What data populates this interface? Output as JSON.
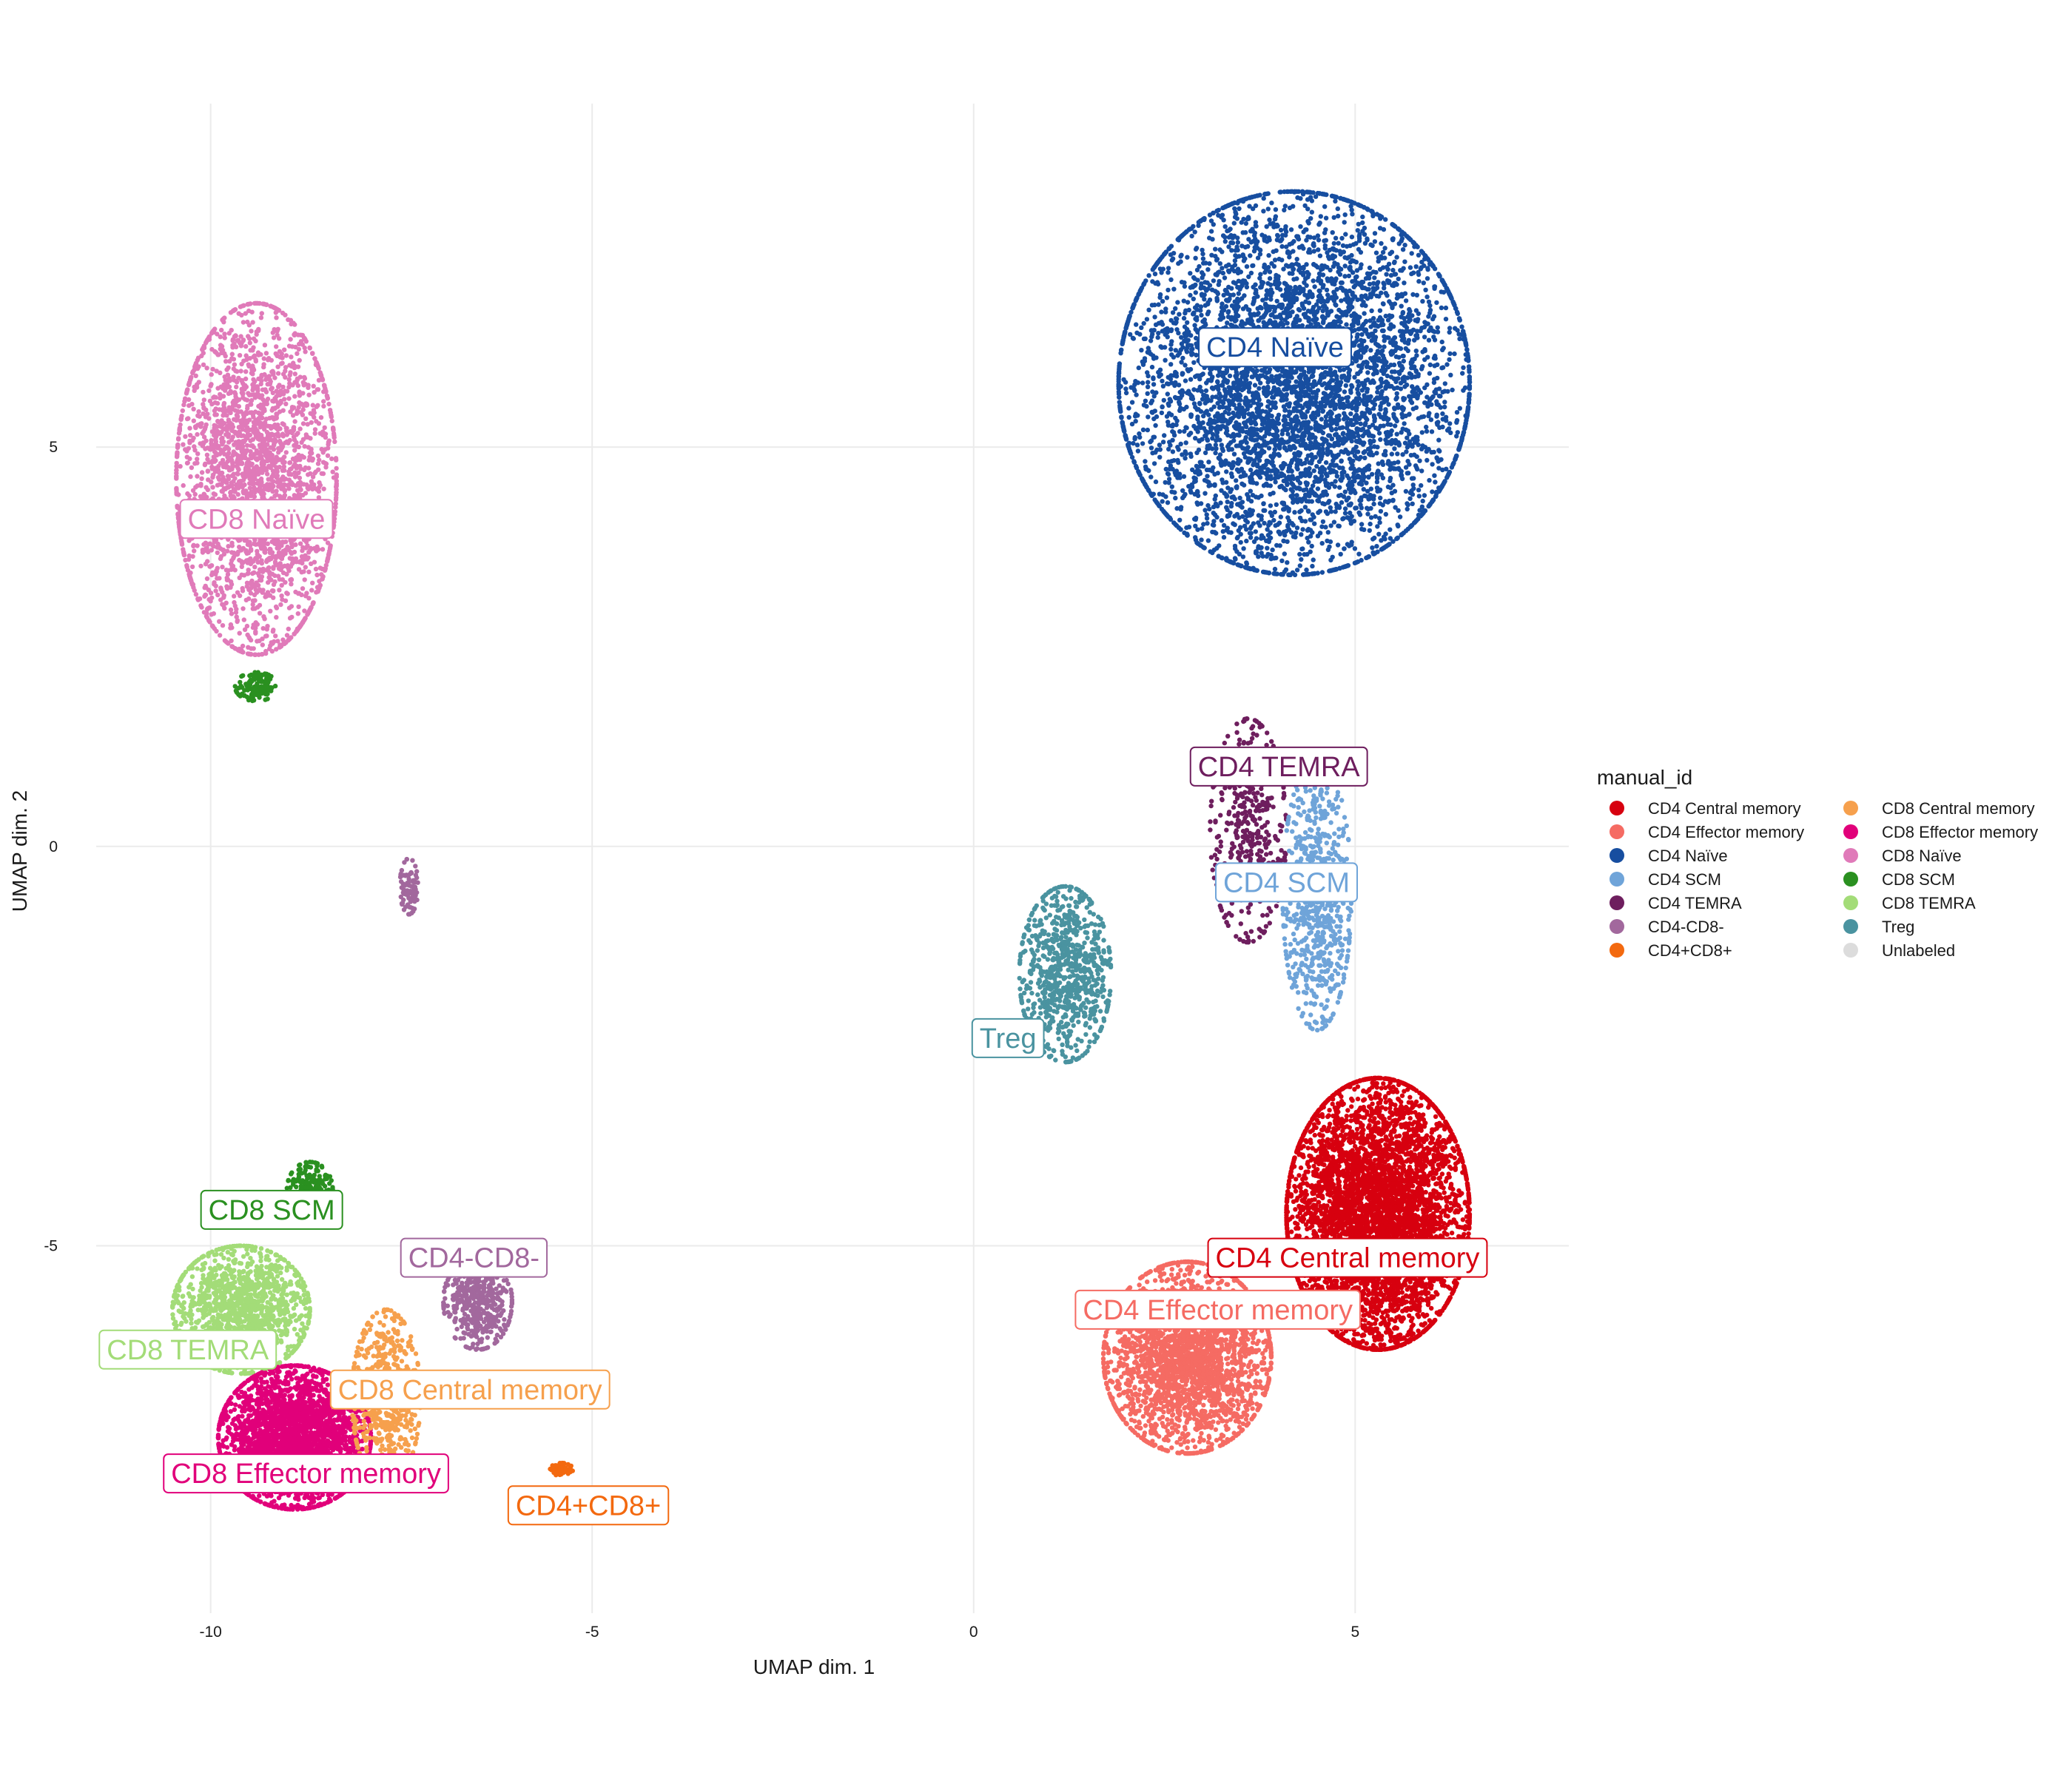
{
  "chart_data": {
    "type": "scatter",
    "title": "",
    "xlabel": "UMAP dim. 1",
    "ylabel": "UMAP dim. 2",
    "xlim": [
      -11.5,
      7.8
    ],
    "ylim": [
      -9.6,
      9.3
    ],
    "x_ticks": [
      -10,
      -5,
      0,
      5
    ],
    "y_ticks": [
      -5,
      0,
      5
    ],
    "x_tick_labels": [
      "-10",
      "-5",
      "0",
      "5"
    ],
    "y_tick_labels": [
      "-5",
      "0",
      "5"
    ],
    "grid": true,
    "legend": {
      "title": "manual_id",
      "position": "right",
      "columns": 2,
      "entries": [
        {
          "label": "CD4 Central memory",
          "color": "#d7000f"
        },
        {
          "label": "CD4 Effector memory",
          "color": "#f56b63"
        },
        {
          "label": "CD4 Naïve",
          "color": "#174ea0"
        },
        {
          "label": "CD4 SCM",
          "color": "#6fa4d9"
        },
        {
          "label": "CD4 TEMRA",
          "color": "#6e1e5e"
        },
        {
          "label": "CD4-CD8-",
          "color": "#a2689d"
        },
        {
          "label": "CD4+CD8+",
          "color": "#f3690f"
        },
        {
          "label": "CD8 Central memory",
          "color": "#f6a04d"
        },
        {
          "label": "CD8 Effector memory",
          "color": "#e1007a"
        },
        {
          "label": "CD8 Naïve",
          "color": "#e07ab9"
        },
        {
          "label": "CD8 SCM",
          "color": "#2a9020"
        },
        {
          "label": "CD8 TEMRA",
          "color": "#a3dc78"
        },
        {
          "label": "Treg",
          "color": "#4a93a0"
        },
        {
          "label": "Unlabeled",
          "color": "#dcdcdc"
        }
      ]
    },
    "clusters": [
      {
        "name": "CD8 Naïve",
        "color": "#e07ab9",
        "center": [
          -9.4,
          4.6
        ],
        "spread": [
          1.05,
          2.2
        ],
        "count": 2600,
        "label": "CD8 Naïve",
        "label_pos": [
          -9.4,
          4.1
        ]
      },
      {
        "name": "CD8 SCM",
        "color": "#2a9020",
        "center": [
          -9.4,
          2.0
        ],
        "spread": [
          0.28,
          0.18
        ],
        "count": 120,
        "label": "",
        "label_pos": null
      },
      {
        "name": "CD4-CD8-",
        "color": "#a2689d",
        "center": [
          -7.4,
          -0.5
        ],
        "spread": [
          0.12,
          0.35
        ],
        "count": 90,
        "label": "",
        "label_pos": null
      },
      {
        "name": "CD4 Naïve",
        "color": "#174ea0",
        "center": [
          4.2,
          5.8
        ],
        "spread": [
          2.3,
          2.4
        ],
        "count": 5200,
        "label": "CD4 Naïve",
        "label_pos": [
          3.95,
          6.25
        ]
      },
      {
        "name": "CD4 TEMRA",
        "color": "#6e1e5e",
        "center": [
          3.6,
          0.2
        ],
        "spread": [
          0.5,
          1.4
        ],
        "count": 420,
        "label": "CD4 TEMRA",
        "label_pos": [
          4.0,
          1.0
        ]
      },
      {
        "name": "CD4 SCM",
        "color": "#6fa4d9",
        "center": [
          4.5,
          -0.6
        ],
        "spread": [
          0.45,
          1.7
        ],
        "count": 700,
        "label": "CD4 SCM",
        "label_pos": [
          4.1,
          -0.45
        ]
      },
      {
        "name": "Treg",
        "color": "#4a93a0",
        "center": [
          1.2,
          -1.6
        ],
        "spread": [
          0.6,
          1.1
        ],
        "count": 800,
        "label": "Treg",
        "label_pos": [
          0.45,
          -2.4
        ]
      },
      {
        "name": "CD4 Central memory",
        "color": "#d7000f",
        "center": [
          5.3,
          -4.6
        ],
        "spread": [
          1.2,
          1.7
        ],
        "count": 4800,
        "label": "CD4 Central memory",
        "label_pos": [
          4.9,
          -5.15
        ]
      },
      {
        "name": "CD4 Effector memory",
        "color": "#f56b63",
        "center": [
          2.8,
          -6.4
        ],
        "spread": [
          1.1,
          1.2
        ],
        "count": 2400,
        "label": "CD4 Effector memory",
        "label_pos": [
          3.2,
          -5.8
        ]
      },
      {
        "name": "CD8 TEMRA",
        "color": "#a3dc78",
        "center": [
          -9.6,
          -5.8
        ],
        "spread": [
          0.9,
          0.8
        ],
        "count": 1300,
        "label": "CD8 TEMRA",
        "label_pos": [
          -10.3,
          -6.3
        ]
      },
      {
        "name": "CD8 Effector memory",
        "color": "#e1007a",
        "center": [
          -8.9,
          -7.4
        ],
        "spread": [
          1.0,
          0.9
        ],
        "count": 2600,
        "label": "CD8 Effector memory",
        "label_pos": [
          -8.75,
          -7.85
        ]
      },
      {
        "name": "CD8 Central memory",
        "color": "#f6a04d",
        "center": [
          -7.7,
          -6.9
        ],
        "spread": [
          0.45,
          1.1
        ],
        "count": 650,
        "label": "CD8 Central memory",
        "label_pos": [
          -6.6,
          -6.8
        ]
      },
      {
        "name": "CD4-CD8-",
        "color": "#a2689d",
        "center": [
          -6.5,
          -5.7
        ],
        "spread": [
          0.45,
          0.6
        ],
        "count": 450,
        "label": "CD4-CD8-",
        "label_pos": [
          -6.55,
          -5.15
        ]
      },
      {
        "name": "CD4+CD8+",
        "color": "#f3690f",
        "center": [
          -5.4,
          -7.8
        ],
        "spread": [
          0.15,
          0.08
        ],
        "count": 60,
        "label": "CD4+CD8+",
        "label_pos": [
          -5.05,
          -8.25
        ]
      },
      {
        "name": "CD8 SCM",
        "color": "#2a9020",
        "center": [
          -8.7,
          -4.3
        ],
        "spread": [
          0.3,
          0.35
        ],
        "count": 220,
        "label": "CD8 SCM",
        "label_pos": [
          -9.2,
          -4.55
        ]
      }
    ]
  }
}
